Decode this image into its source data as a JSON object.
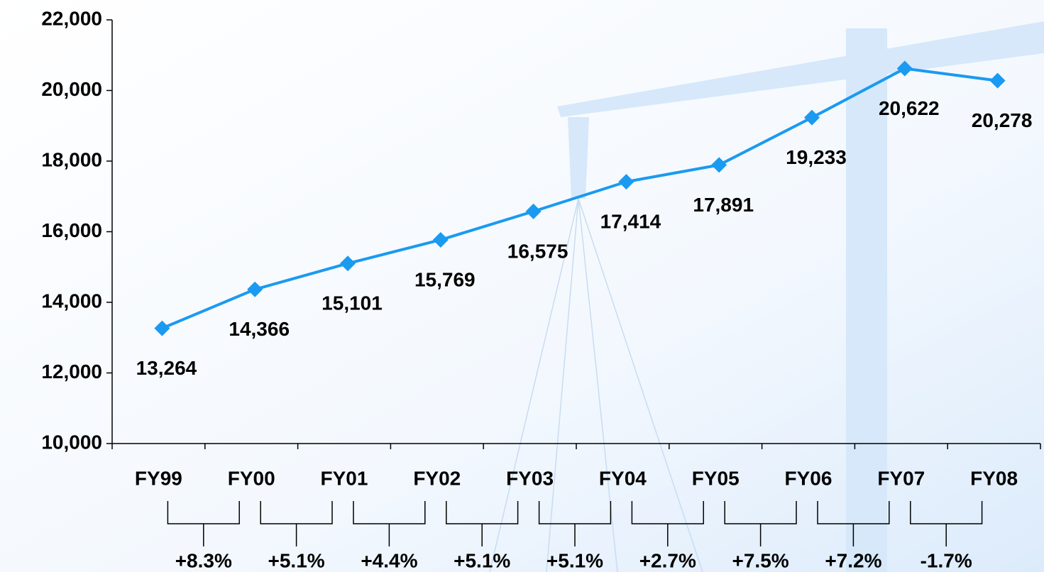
{
  "chart_data": {
    "type": "line",
    "categories": [
      "FY99",
      "FY00",
      "FY01",
      "FY02",
      "FY03",
      "FY04",
      "FY05",
      "FY06",
      "FY07",
      "FY08"
    ],
    "series": [
      {
        "color": "#1a9af0",
        "values": [
          13264,
          14366,
          15101,
          15769,
          16575,
          17414,
          17891,
          19233,
          20622,
          20278
        ],
        "value_labels": [
          "13,264",
          "14,366",
          "15,101",
          "15,769",
          "16,575",
          "17,414",
          "17,891",
          "19,233",
          "20,622",
          "20,278"
        ]
      }
    ],
    "ylim": [
      10000,
      22000
    ],
    "yticks": [
      {
        "value": 10000,
        "label": "10,000"
      },
      {
        "value": 12000,
        "label": "12,000"
      },
      {
        "value": 14000,
        "label": "14,000"
      },
      {
        "value": 16000,
        "label": "16,000"
      },
      {
        "value": 18000,
        "label": "18,000"
      },
      {
        "value": 20000,
        "label": "20,000"
      },
      {
        "value": 22000,
        "label": "22,000"
      }
    ],
    "growth_labels": [
      "+8.3%",
      "+5.1%",
      "+4.4%",
      "+5.1%",
      "+5.1%",
      "+2.7%",
      "+7.5%",
      "+7.2%",
      "-1.7%"
    ]
  }
}
